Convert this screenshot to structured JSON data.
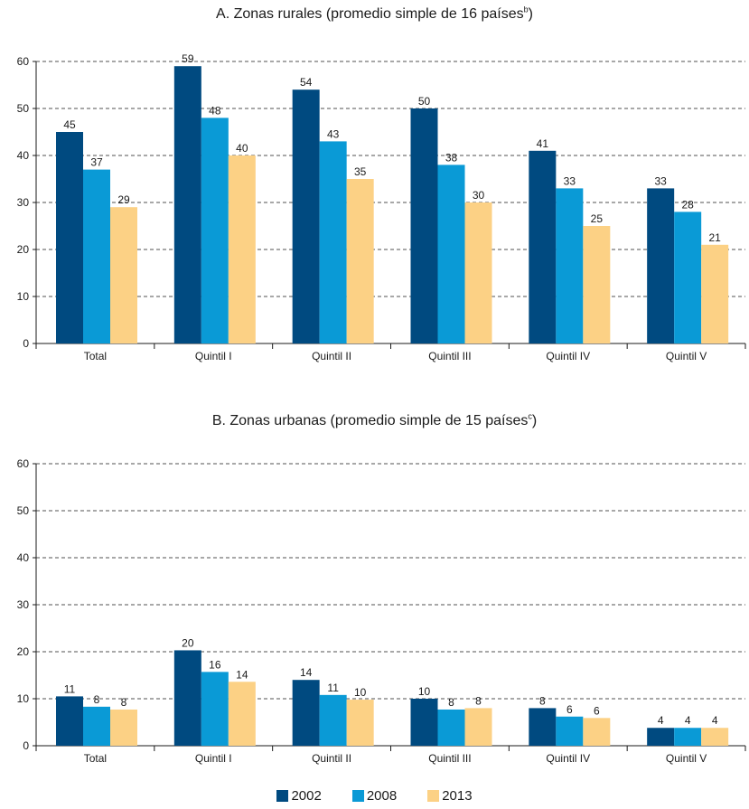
{
  "chart_data": [
    {
      "type": "bar",
      "title": "A. Zonas rurales (promedio simple de 16 países",
      "title_superscript": "b",
      "title_close": ")",
      "categories": [
        "Total",
        "Quintil I",
        "Quintil II",
        "Quintil III",
        "Quintil IV",
        "Quintil V"
      ],
      "series": [
        {
          "name": "2002",
          "values": [
            45,
            59,
            54,
            50,
            41,
            33
          ],
          "labels": [
            "45",
            "59",
            "54",
            "50",
            "41",
            "33"
          ]
        },
        {
          "name": "2008",
          "values": [
            37,
            48,
            43,
            38,
            33,
            28
          ],
          "labels": [
            "37",
            "48",
            "43",
            "38",
            "33",
            "28"
          ]
        },
        {
          "name": "2013",
          "values": [
            29,
            40,
            35,
            30,
            25,
            21
          ],
          "labels": [
            "29",
            "40",
            "35",
            "30",
            "25",
            "21"
          ]
        }
      ],
      "ylim": [
        0,
        60
      ],
      "yticks": [
        "0",
        "10",
        "20",
        "30",
        "40",
        "50",
        "60"
      ],
      "grid": "dashed horizontal",
      "xlabel": "",
      "ylabel": ""
    },
    {
      "type": "bar",
      "title": "B. Zonas urbanas (promedio simple de 15 países",
      "title_superscript": "c",
      "title_close": ")",
      "categories": [
        "Total",
        "Quintil I",
        "Quintil II",
        "Quintil III",
        "Quintil IV",
        "Quintil V"
      ],
      "series": [
        {
          "name": "2002",
          "values": [
            10.5,
            20.3,
            14,
            10,
            8,
            3.8
          ],
          "labels": [
            "11",
            "20",
            "14",
            "10",
            "8",
            "4"
          ]
        },
        {
          "name": "2008",
          "values": [
            8.3,
            15.7,
            10.8,
            7.7,
            6.2,
            3.8
          ],
          "labels": [
            "8",
            "16",
            "11",
            "8",
            "6",
            "4"
          ]
        },
        {
          "name": "2013",
          "values": [
            7.7,
            13.6,
            9.8,
            8,
            5.9,
            3.8
          ],
          "labels": [
            "8",
            "14",
            "10",
            "8",
            "6",
            "4"
          ]
        }
      ],
      "ylim": [
        0,
        60
      ],
      "yticks": [
        "0",
        "10",
        "20",
        "30",
        "40",
        "50",
        "60"
      ],
      "grid": "dashed horizontal",
      "xlabel": "",
      "ylabel": ""
    }
  ],
  "legend": {
    "placement": "bottom-center",
    "items": [
      {
        "name": "2002",
        "color": "#004a80"
      },
      {
        "name": "2008",
        "color": "#0a9ad6"
      },
      {
        "name": "2013",
        "color": "#fcd185"
      }
    ]
  }
}
